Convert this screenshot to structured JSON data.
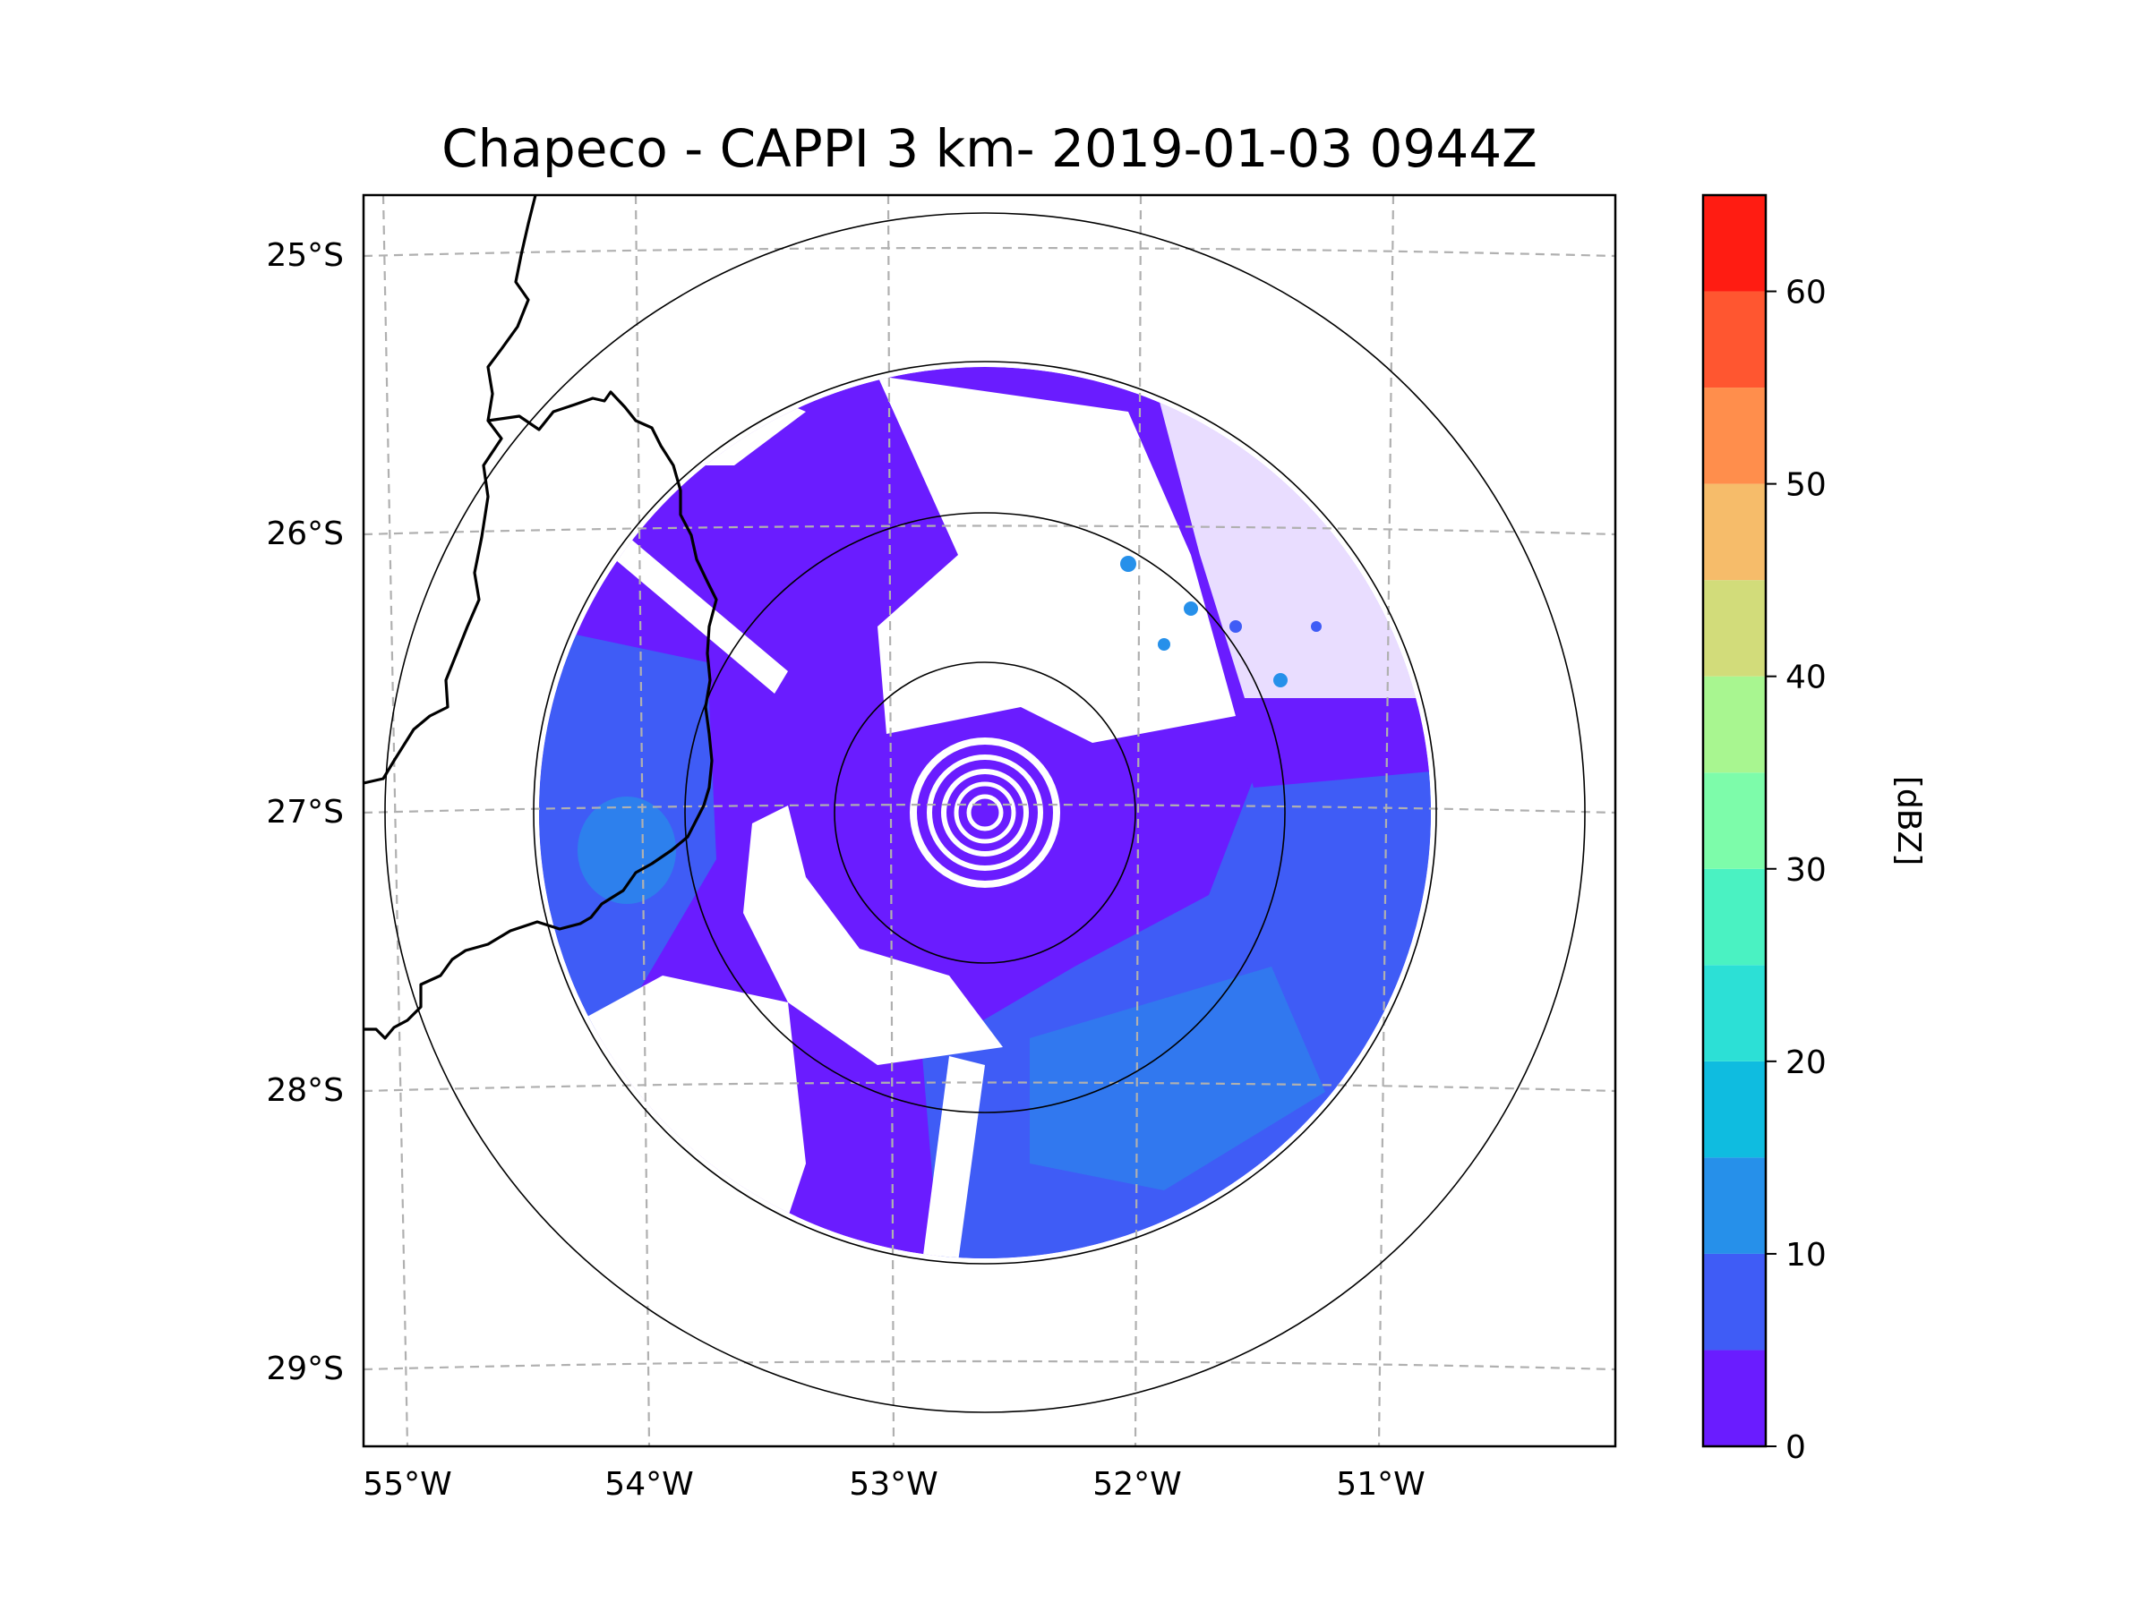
{
  "title": "Chapeco - CAPPI 3 km- 2019-01-03 0944Z",
  "map": {
    "lon_labels": [
      "55°W",
      "54°W",
      "53°W",
      "52°W",
      "51°W"
    ],
    "lat_labels": [
      "25°S",
      "26°S",
      "27°S",
      "28°S",
      "29°S"
    ],
    "range_rings": 4
  },
  "colorbar": {
    "label": "[dBZ]",
    "ticks": [
      "0",
      "10",
      "20",
      "30",
      "40",
      "50",
      "60"
    ],
    "min": 0,
    "max": 65,
    "step": 5,
    "colors": [
      "#6a1cff",
      "#3f5cf6",
      "#2690ea",
      "#0fbce0",
      "#2ce0d6",
      "#4af2c2",
      "#7dfcaa",
      "#a8f690",
      "#d2dc7a",
      "#f6bc6a",
      "#ff8e4c",
      "#ff5630",
      "#ff1c12"
    ]
  },
  "colors": {
    "low_reflectivity": "#6a1cff",
    "mid_reflectivity": "#3f5cf6",
    "high_reflectivity": "#2690ea",
    "gridline": "#b0b0b0",
    "border": "#000000"
  }
}
